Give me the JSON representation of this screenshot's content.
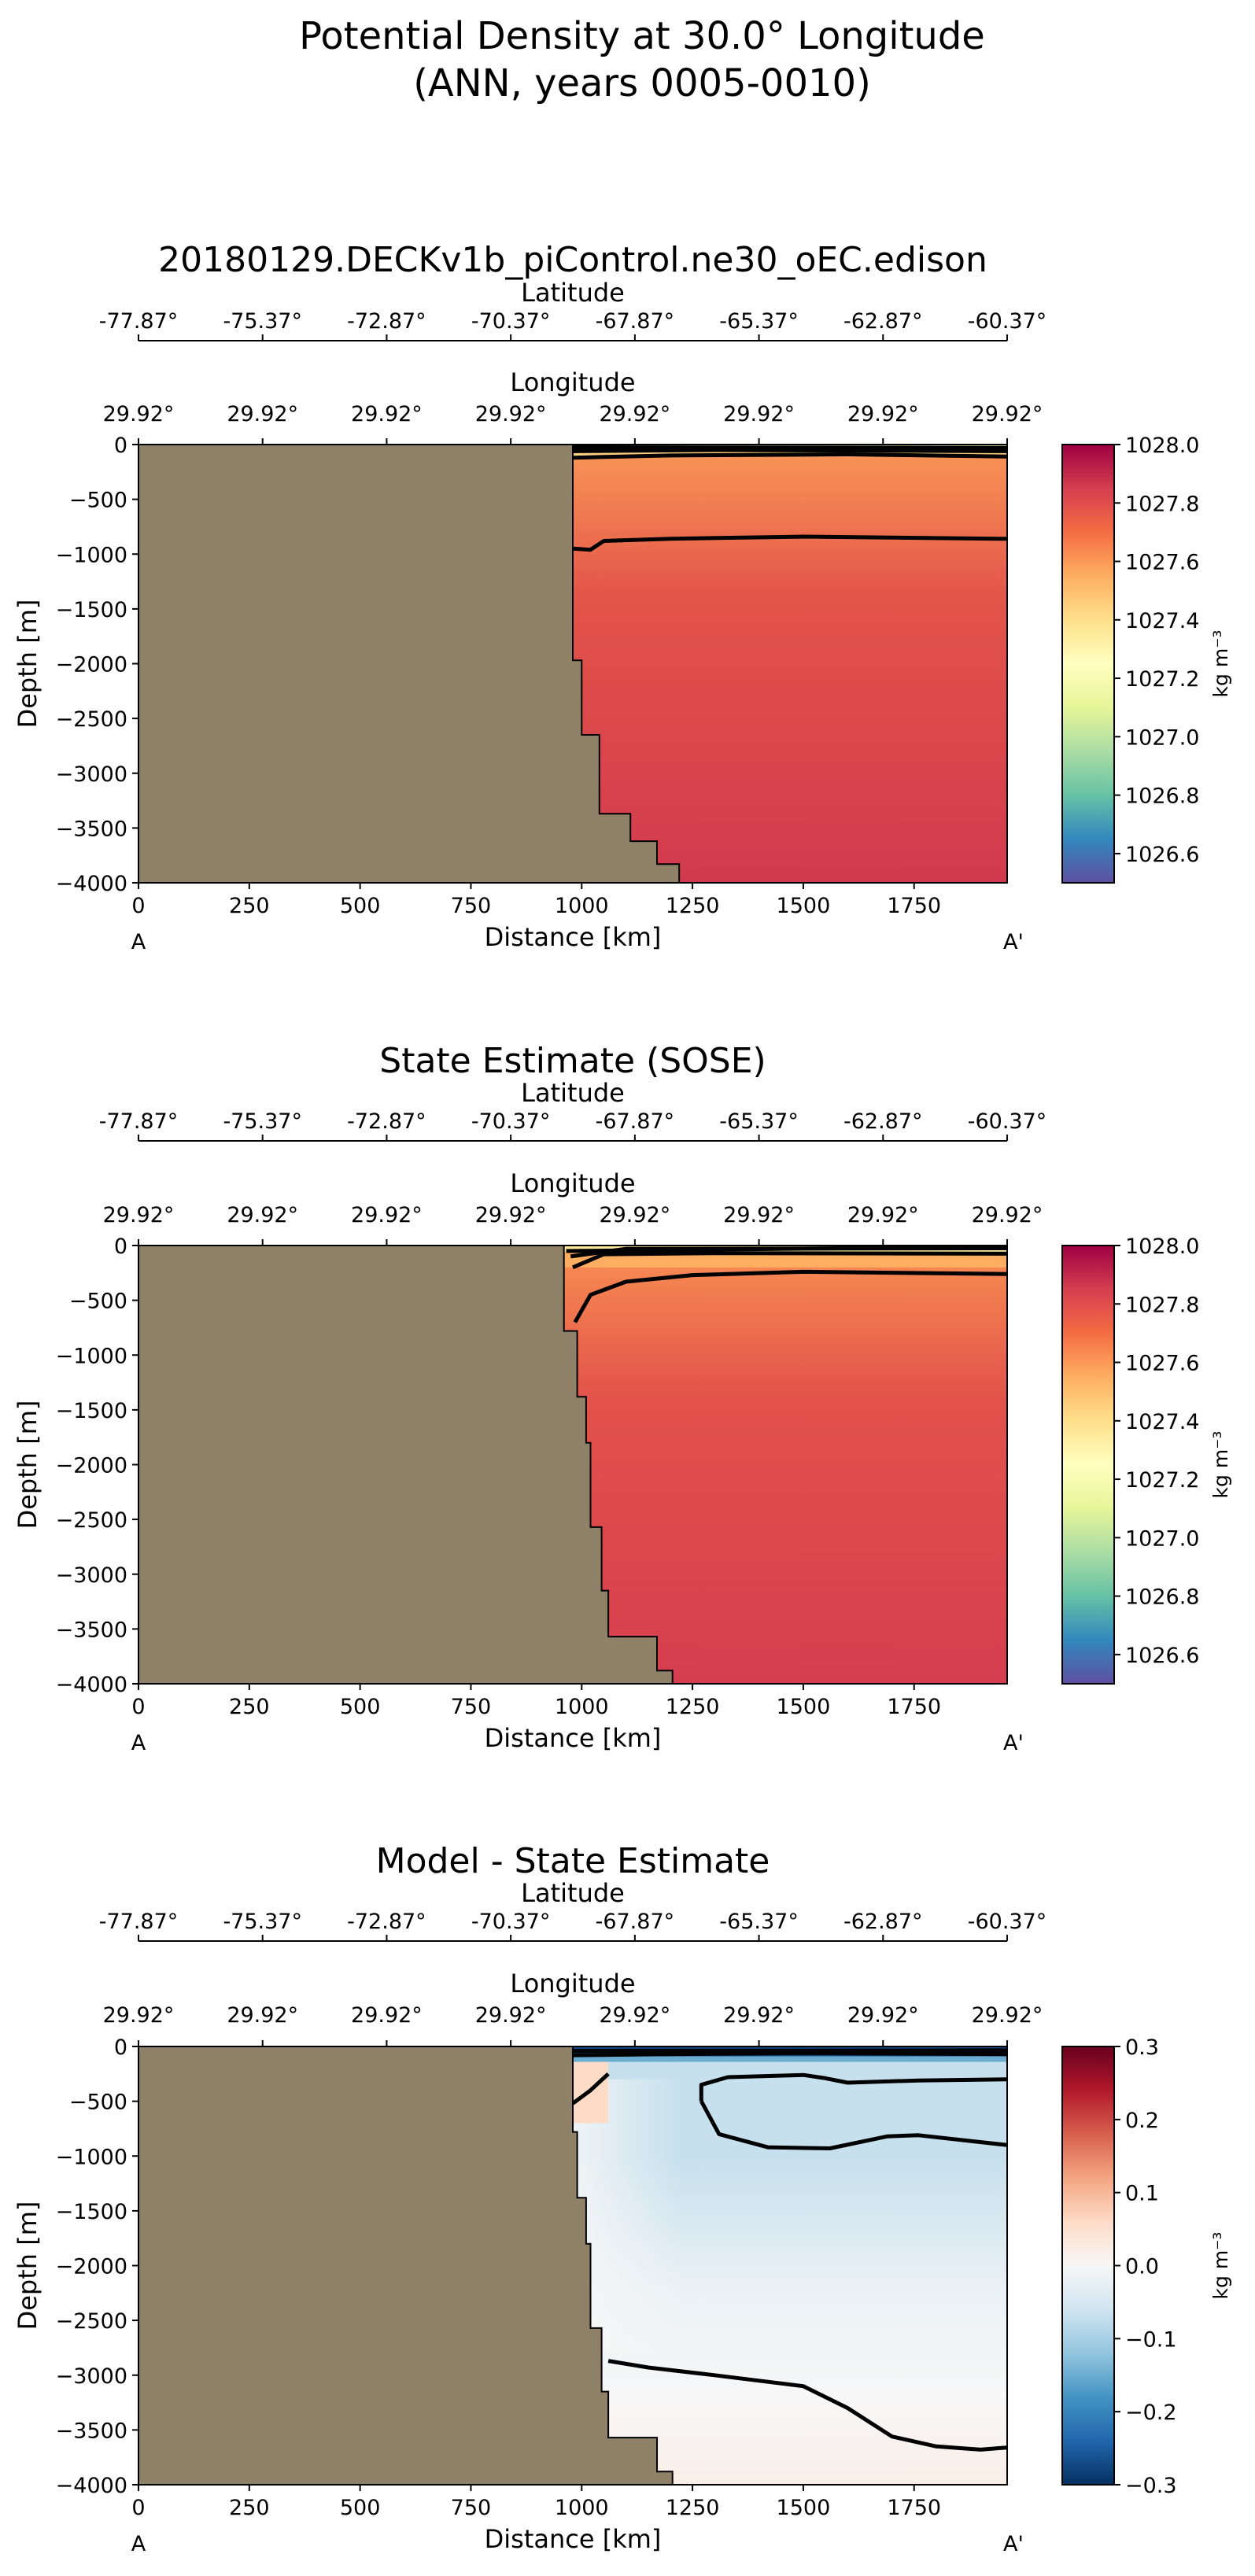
{
  "figure": {
    "title_line1": "Potential Density at 30.0° Longitude",
    "title_line2": "(ANN, years 0005-0010)",
    "land_color": "#8f8068",
    "section_start_label": "A",
    "section_end_label": "A'"
  },
  "chart_data": [
    {
      "type": "heatmap",
      "title": "20180129.DECKv1b_piControl.ne30_oEC.edison",
      "xlabel": "Distance [km]",
      "ylabel": "Depth [m]",
      "xlim": [
        0,
        1960
      ],
      "ylim": [
        -4000,
        0
      ],
      "x_ticks": [
        0,
        250,
        500,
        750,
        1000,
        1250,
        1500,
        1750
      ],
      "y_ticks": [
        0,
        -500,
        -1000,
        -1500,
        -2000,
        -2500,
        -3000,
        -3500,
        -4000
      ],
      "x_tick_labels": [
        "0",
        "250",
        "500",
        "750",
        "1000",
        "1250",
        "1500",
        "1750"
      ],
      "y_tick_labels": [
        "0",
        "−500",
        "−1000",
        "−1500",
        "−2000",
        "−2500",
        "−3000",
        "−3500",
        "−4000"
      ],
      "top_axis_1_label": "Latitude",
      "top_axis_1_ticks": [
        "-77.87°",
        "-75.37°",
        "-72.87°",
        "-70.37°",
        "-67.87°",
        "-65.37°",
        "-62.87°",
        "-60.37°"
      ],
      "top_axis_2_label": "Longitude",
      "top_axis_2_ticks": [
        "29.92°",
        "29.92°",
        "29.92°",
        "29.92°",
        "29.92°",
        "29.92°",
        "29.92°",
        "29.92°"
      ],
      "colorbar": {
        "label": "kg m⁻³",
        "min": 1026.5,
        "max": 1028.0,
        "ticks": [
          1026.6,
          1026.8,
          1027.0,
          1027.2,
          1027.4,
          1027.6,
          1027.8,
          1028.0
        ],
        "tick_labels": [
          "1026.6",
          "1026.8",
          "1027.0",
          "1027.2",
          "1027.4",
          "1027.6",
          "1027.8",
          "1028.0"
        ],
        "colormap": "Spectral_r"
      },
      "field": {
        "surface_value": 1027.6,
        "deep_value": 1027.86,
        "shelf_surface_value": 1027.3
      },
      "bathymetry": [
        [
          0,
          0
        ],
        [
          980,
          0
        ],
        [
          980,
          -1970
        ],
        [
          1000,
          -1970
        ],
        [
          1000,
          -2650
        ],
        [
          1040,
          -2650
        ],
        [
          1040,
          -3370
        ],
        [
          1110,
          -3370
        ],
        [
          1110,
          -3620
        ],
        [
          1170,
          -3620
        ],
        [
          1170,
          -3830
        ],
        [
          1220,
          -3830
        ],
        [
          1220,
          -4000
        ]
      ],
      "contours": [
        {
          "name": "contour-1027.8",
          "points": [
            [
              980,
              -950
            ],
            [
              1020,
              -960
            ],
            [
              1050,
              -880
            ],
            [
              1200,
              -860
            ],
            [
              1500,
              -840
            ],
            [
              1960,
              -860
            ]
          ]
        },
        {
          "name": "contour-upper-a",
          "points": [
            [
              980,
              -120
            ],
            [
              1200,
              -100
            ],
            [
              1600,
              -90
            ],
            [
              1960,
              -110
            ]
          ]
        },
        {
          "name": "contour-upper-b",
          "points": [
            [
              980,
              -60
            ],
            [
              1300,
              -50
            ],
            [
              1960,
              -60
            ]
          ]
        },
        {
          "name": "contour-upper-c",
          "points": [
            [
              980,
              -25
            ],
            [
              1960,
              -30
            ]
          ]
        }
      ],
      "surface_bands": [
        {
          "from": -40,
          "to": 0,
          "value": 1027.2
        },
        {
          "from": -110,
          "to": -40,
          "value": 1027.45
        }
      ]
    },
    {
      "type": "heatmap",
      "title": "State Estimate (SOSE)",
      "xlabel": "Distance [km]",
      "ylabel": "Depth [m]",
      "xlim": [
        0,
        1960
      ],
      "ylim": [
        -4000,
        0
      ],
      "x_ticks": [
        0,
        250,
        500,
        750,
        1000,
        1250,
        1500,
        1750
      ],
      "y_ticks": [
        0,
        -500,
        -1000,
        -1500,
        -2000,
        -2500,
        -3000,
        -3500,
        -4000
      ],
      "x_tick_labels": [
        "0",
        "250",
        "500",
        "750",
        "1000",
        "1250",
        "1500",
        "1750"
      ],
      "y_tick_labels": [
        "0",
        "−500",
        "−1000",
        "−1500",
        "−2000",
        "−2500",
        "−3000",
        "−3500",
        "−4000"
      ],
      "top_axis_1_label": "Latitude",
      "top_axis_1_ticks": [
        "-77.87°",
        "-75.37°",
        "-72.87°",
        "-70.37°",
        "-67.87°",
        "-65.37°",
        "-62.87°",
        "-60.37°"
      ],
      "top_axis_2_label": "Longitude",
      "top_axis_2_ticks": [
        "29.92°",
        "29.92°",
        "29.92°",
        "29.92°",
        "29.92°",
        "29.92°",
        "29.92°",
        "29.92°"
      ],
      "colorbar": {
        "label": "kg m⁻³",
        "min": 1026.5,
        "max": 1028.0,
        "ticks": [
          1026.6,
          1026.8,
          1027.0,
          1027.2,
          1027.4,
          1027.6,
          1027.8,
          1028.0
        ],
        "tick_labels": [
          "1026.6",
          "1026.8",
          "1027.0",
          "1027.2",
          "1027.4",
          "1027.6",
          "1027.8",
          "1028.0"
        ],
        "colormap": "Spectral_r"
      },
      "field": {
        "surface_value": 1027.62,
        "deep_value": 1027.85,
        "shelf_surface_value": 1027.35
      },
      "bathymetry": [
        [
          0,
          0
        ],
        [
          960,
          0
        ],
        [
          960,
          -780
        ],
        [
          990,
          -780
        ],
        [
          990,
          -1380
        ],
        [
          1010,
          -1380
        ],
        [
          1010,
          -1800
        ],
        [
          1020,
          -1800
        ],
        [
          1020,
          -2570
        ],
        [
          1045,
          -2570
        ],
        [
          1045,
          -3150
        ],
        [
          1060,
          -3150
        ],
        [
          1060,
          -3570
        ],
        [
          1170,
          -3570
        ],
        [
          1170,
          -3880
        ],
        [
          1205,
          -3880
        ],
        [
          1205,
          -4000
        ]
      ],
      "contours": [
        {
          "name": "contour-1027.8",
          "points": [
            [
              985,
              -700
            ],
            [
              1020,
              -450
            ],
            [
              1100,
              -330
            ],
            [
              1250,
              -270
            ],
            [
              1500,
              -240
            ],
            [
              1960,
              -260
            ]
          ]
        },
        {
          "name": "contour-upper-a",
          "points": [
            [
              980,
              -200
            ],
            [
              1050,
              -80
            ],
            [
              1300,
              -70
            ],
            [
              1960,
              -75
            ]
          ]
        },
        {
          "name": "contour-upper-b",
          "points": [
            [
              975,
              -100
            ],
            [
              1100,
              -30
            ],
            [
              1960,
              -25
            ]
          ]
        },
        {
          "name": "contour-upper-c",
          "points": [
            [
              965,
              -50
            ],
            [
              1960,
              -10
            ]
          ]
        }
      ],
      "surface_bands": [
        {
          "from": -60,
          "to": 0,
          "value": 1027.35
        },
        {
          "from": -200,
          "to": -60,
          "value": 1027.55
        }
      ]
    },
    {
      "type": "heatmap",
      "title": "Model - State Estimate",
      "xlabel": "Distance [km]",
      "ylabel": "Depth [m]",
      "xlim": [
        0,
        1960
      ],
      "ylim": [
        -4000,
        0
      ],
      "x_ticks": [
        0,
        250,
        500,
        750,
        1000,
        1250,
        1500,
        1750
      ],
      "y_ticks": [
        0,
        -500,
        -1000,
        -1500,
        -2000,
        -2500,
        -3000,
        -3500,
        -4000
      ],
      "x_tick_labels": [
        "0",
        "250",
        "500",
        "750",
        "1000",
        "1250",
        "1500",
        "1750"
      ],
      "y_tick_labels": [
        "0",
        "−500",
        "−1000",
        "−1500",
        "−2000",
        "−2500",
        "−3000",
        "−3500",
        "−4000"
      ],
      "top_axis_1_label": "Latitude",
      "top_axis_1_ticks": [
        "-77.87°",
        "-75.37°",
        "-72.87°",
        "-70.37°",
        "-67.87°",
        "-65.37°",
        "-62.87°",
        "-60.37°"
      ],
      "top_axis_2_label": "Longitude",
      "top_axis_2_ticks": [
        "29.92°",
        "29.92°",
        "29.92°",
        "29.92°",
        "29.92°",
        "29.92°",
        "29.92°",
        "29.92°"
      ],
      "colorbar": {
        "label": "kg m⁻³",
        "min": -0.3,
        "max": 0.3,
        "ticks": [
          -0.3,
          -0.2,
          -0.1,
          0.0,
          0.1,
          0.2,
          0.3
        ],
        "tick_labels": [
          "−0.3",
          "−0.2",
          "−0.1",
          "0.0",
          "0.1",
          "0.2",
          "0.3"
        ],
        "colormap": "RdBu_r"
      },
      "field": {
        "upper_value": -0.07,
        "mid_value": -0.02,
        "deep_value": 0.02,
        "shelf_value": 0.06
      },
      "bathymetry": [
        [
          0,
          0
        ],
        [
          980,
          0
        ],
        [
          980,
          -780
        ],
        [
          990,
          -780
        ],
        [
          990,
          -1380
        ],
        [
          1010,
          -1380
        ],
        [
          1010,
          -1800
        ],
        [
          1020,
          -1800
        ],
        [
          1020,
          -2570
        ],
        [
          1045,
          -2570
        ],
        [
          1045,
          -3150
        ],
        [
          1060,
          -3150
        ],
        [
          1060,
          -3570
        ],
        [
          1170,
          -3570
        ],
        [
          1170,
          -3880
        ],
        [
          1205,
          -3880
        ],
        [
          1205,
          -4000
        ]
      ],
      "contours": [
        {
          "name": "contour-neg-0.1-upper",
          "points": [
            [
              1270,
              -500
            ],
            [
              1270,
              -350
            ],
            [
              1330,
              -280
            ],
            [
              1500,
              -260
            ],
            [
              1550,
              -290
            ],
            [
              1600,
              -330
            ],
            [
              1760,
              -310
            ],
            [
              1960,
              -300
            ]
          ]
        },
        {
          "name": "contour-neg-0.1-lower",
          "points": [
            [
              1270,
              -500
            ],
            [
              1310,
              -800
            ],
            [
              1420,
              -920
            ],
            [
              1560,
              -930
            ],
            [
              1690,
              -820
            ],
            [
              1760,
              -810
            ],
            [
              1960,
              -900
            ]
          ]
        },
        {
          "name": "contour-zero",
          "points": [
            [
              1060,
              -2870
            ],
            [
              1150,
              -2930
            ],
            [
              1300,
              -3000
            ],
            [
              1500,
              -3100
            ],
            [
              1600,
              -3300
            ],
            [
              1700,
              -3560
            ],
            [
              1800,
              -3650
            ],
            [
              1900,
              -3680
            ],
            [
              1960,
              -3660
            ]
          ]
        },
        {
          "name": "contour-shelf",
          "points": [
            [
              980,
              -520
            ],
            [
              1020,
              -400
            ],
            [
              1060,
              -250
            ]
          ]
        },
        {
          "name": "contour-surface-a",
          "points": [
            [
              980,
              -80
            ],
            [
              1200,
              -70
            ],
            [
              1500,
              -60
            ],
            [
              1960,
              -70
            ]
          ]
        },
        {
          "name": "contour-surface-b",
          "points": [
            [
              980,
              -40
            ],
            [
              1960,
              -35
            ]
          ]
        }
      ],
      "surface_bands": [
        {
          "from": -90,
          "to": 0,
          "value": -0.27
        },
        {
          "from": -140,
          "to": -90,
          "value": -0.15
        }
      ]
    }
  ]
}
